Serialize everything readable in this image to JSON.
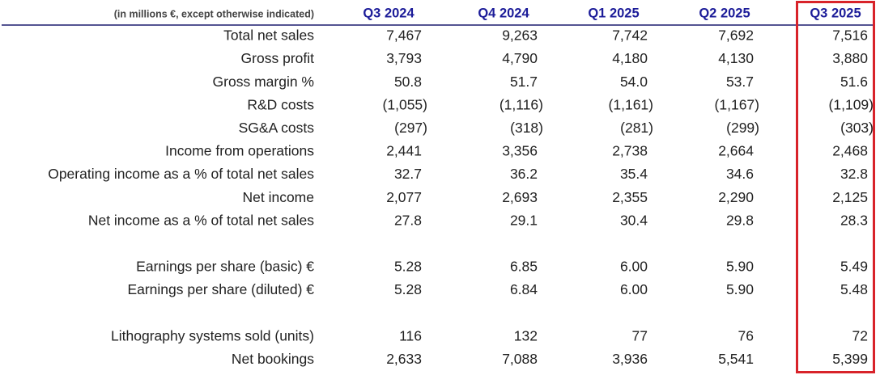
{
  "table": {
    "header": {
      "note": "(in millions €, except otherwise indicated)",
      "columns": [
        "Q3 2024",
        "Q4 2024",
        "Q1 2025",
        "Q2 2025",
        "Q3 2025"
      ]
    },
    "sections": [
      [
        {
          "label": "Total net sales",
          "cells": [
            "7,467",
            "9,263",
            "7,742",
            "7,692",
            "7,516"
          ]
        },
        {
          "label": "Gross profit",
          "cells": [
            "3,793",
            "4,790",
            "4,180",
            "4,130",
            "3,880"
          ]
        },
        {
          "label": "Gross margin %",
          "cells": [
            "50.8",
            "51.7",
            "54.0",
            "53.7",
            "51.6"
          ]
        },
        {
          "label": "R&D costs",
          "cells": [
            "(1,055)",
            "(1,116)",
            "(1,161)",
            "(1,167)",
            "(1,109)"
          ]
        },
        {
          "label": "SG&A costs",
          "cells": [
            "(297)",
            "(318)",
            "(281)",
            "(299)",
            "(303)"
          ]
        },
        {
          "label": "Income from operations",
          "cells": [
            "2,441",
            "3,356",
            "2,738",
            "2,664",
            "2,468"
          ]
        },
        {
          "label": "Operating income as a % of total net sales",
          "cells": [
            "32.7",
            "36.2",
            "35.4",
            "34.6",
            "32.8"
          ]
        },
        {
          "label": "Net income",
          "cells": [
            "2,077",
            "2,693",
            "2,355",
            "2,290",
            "2,125"
          ]
        },
        {
          "label": "Net income as a % of total net sales",
          "cells": [
            "27.8",
            "29.1",
            "30.4",
            "29.8",
            "28.3"
          ]
        }
      ],
      [
        {
          "label": "Earnings per share (basic) €",
          "cells": [
            "5.28",
            "6.85",
            "6.00",
            "5.90",
            "5.49"
          ]
        },
        {
          "label": "Earnings per share (diluted) €",
          "cells": [
            "5.28",
            "6.84",
            "6.00",
            "5.90",
            "5.48"
          ]
        }
      ],
      [
        {
          "label": "Lithography systems sold (units)",
          "cells": [
            "116",
            "132",
            "77",
            "76",
            "72"
          ]
        },
        {
          "label": "Net bookings",
          "cells": [
            "2,633",
            "7,088",
            "3,936",
            "5,541",
            "5,399"
          ]
        }
      ]
    ]
  }
}
